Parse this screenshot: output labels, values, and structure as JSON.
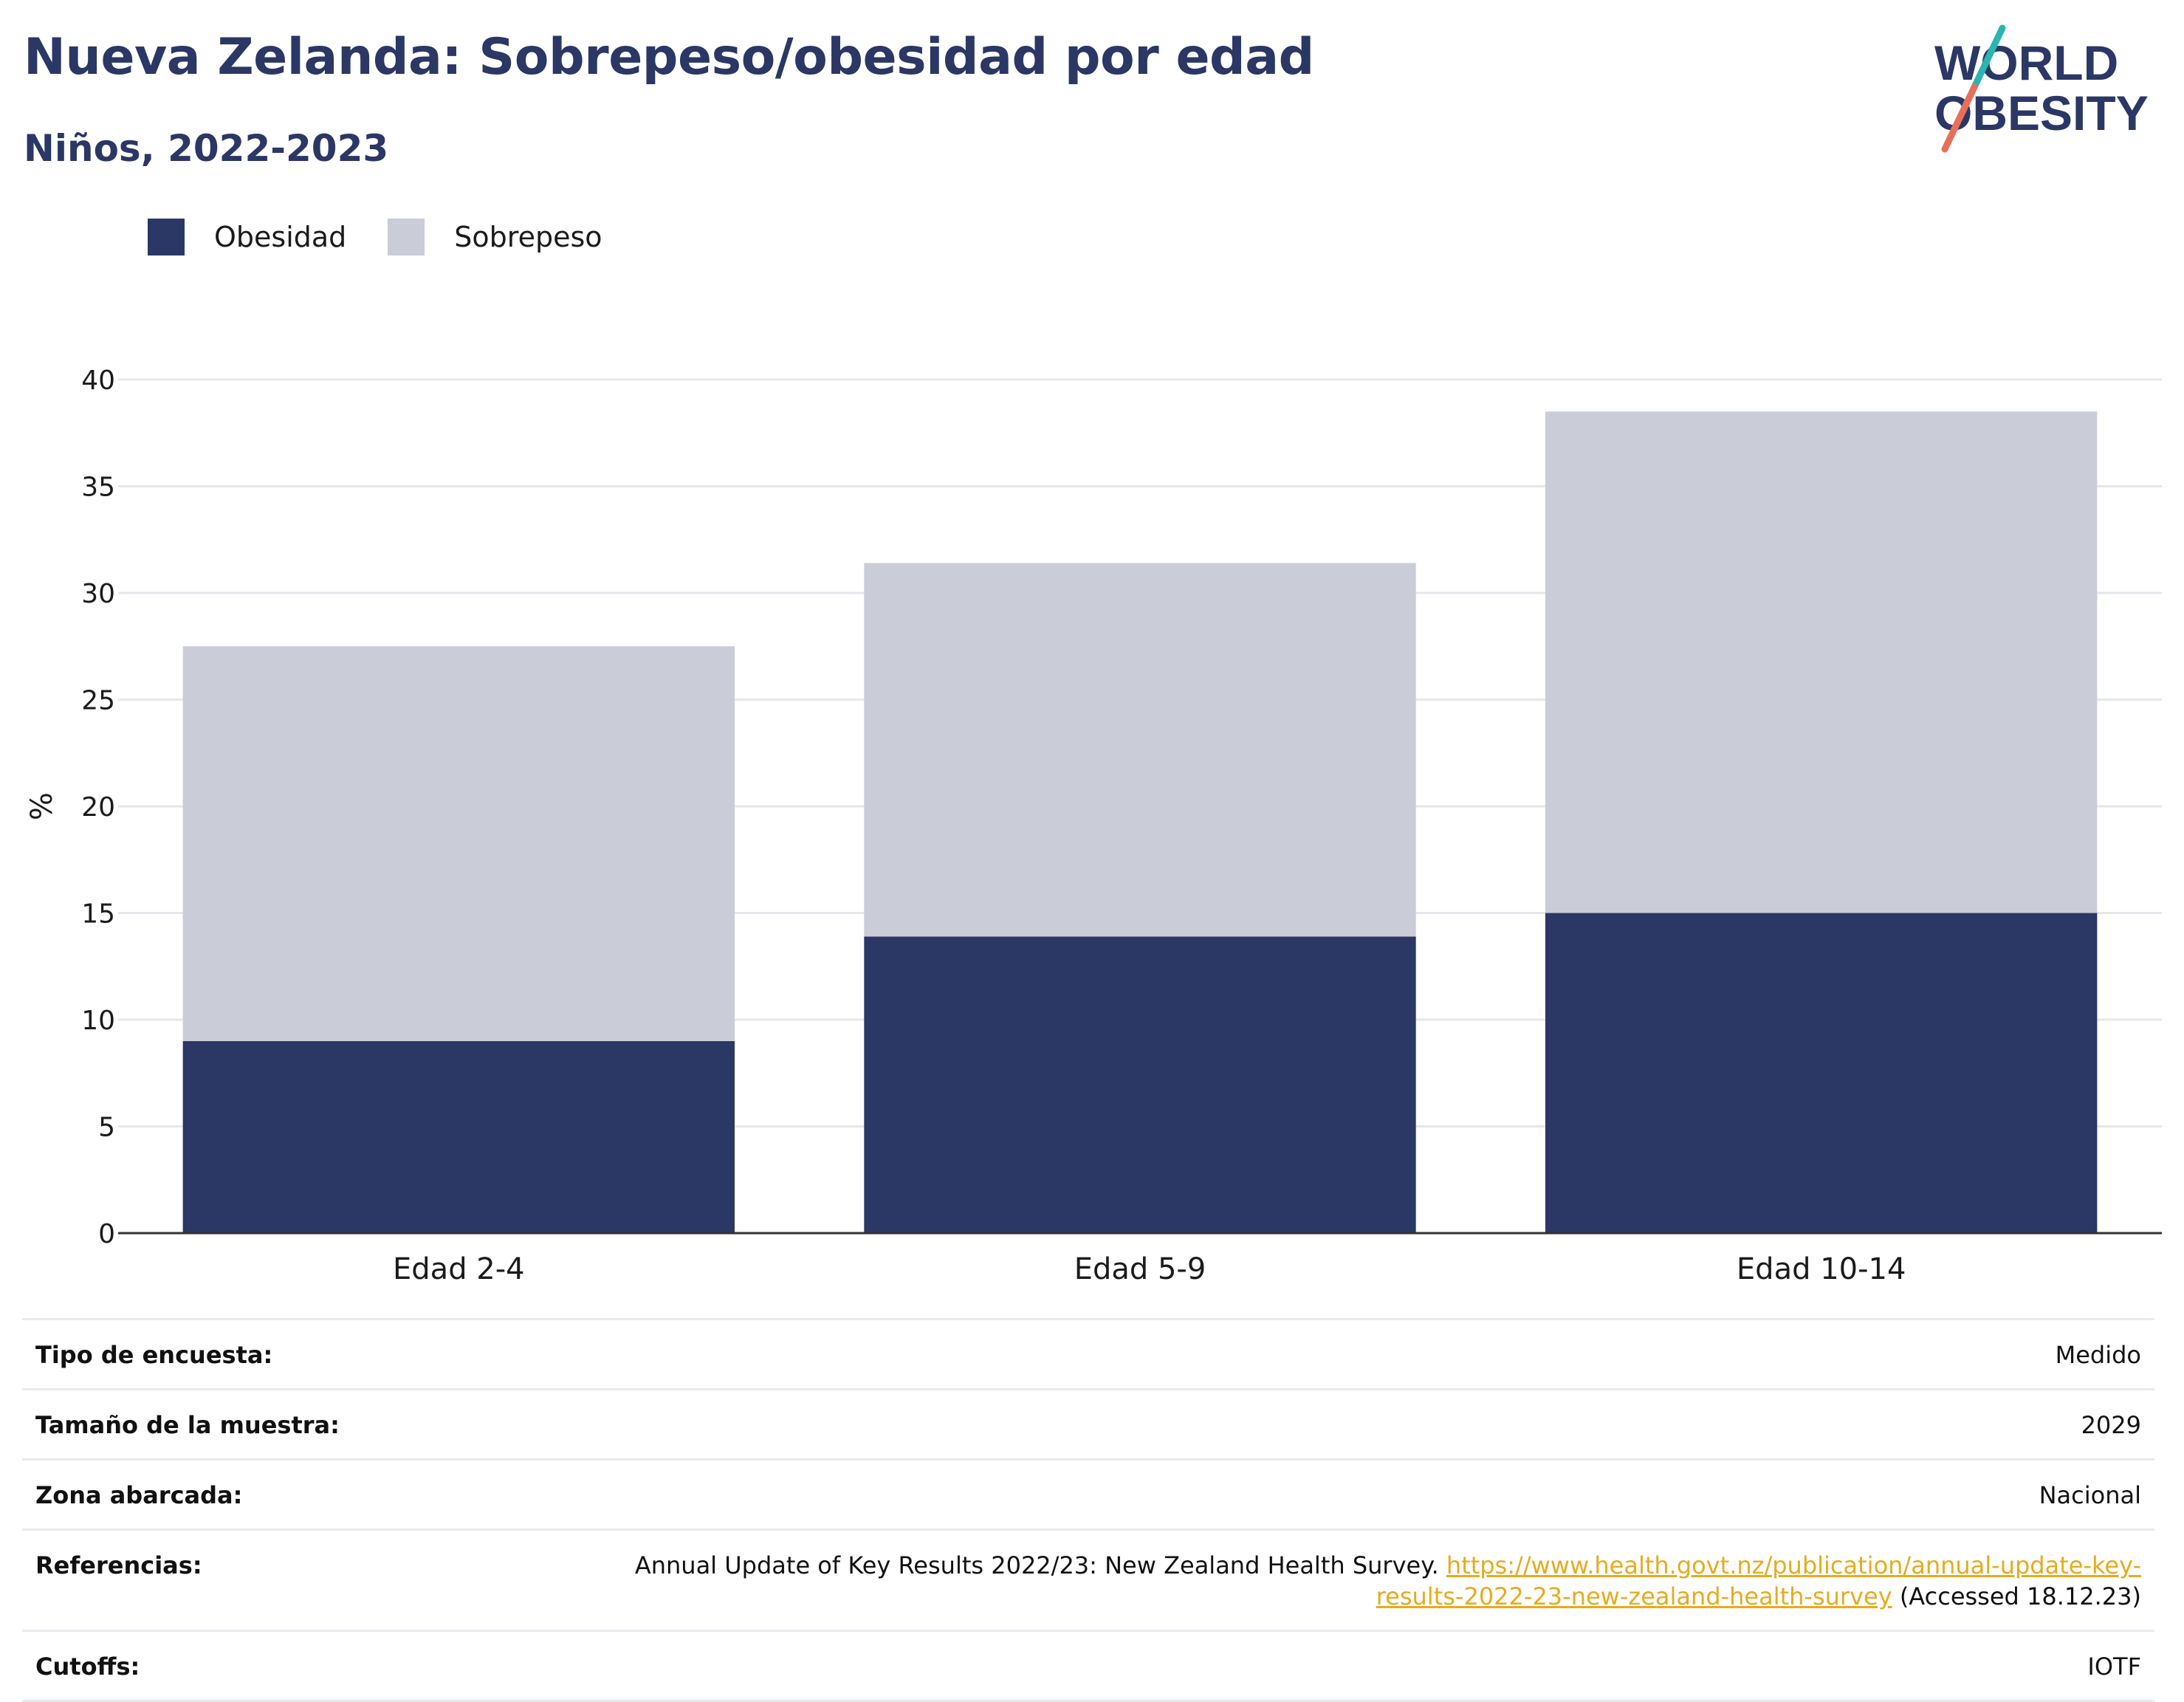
{
  "header": {
    "title": "Nueva Zelanda: Sobrepeso/obesidad por edad",
    "subtitle": "Niños, 2022-2023"
  },
  "logo": {
    "line1": "WORLD",
    "line2": "OBESITY",
    "accent1": "#2bb5b0",
    "accent2": "#e8705a",
    "text_color": "#2b3765"
  },
  "chart_data": {
    "type": "bar",
    "stacked": true,
    "categories": [
      "Edad 2-4",
      "Edad 5-9",
      "Edad 10-14"
    ],
    "series": [
      {
        "name": "Obesidad",
        "values": [
          9.0,
          13.9,
          15.0
        ],
        "color": "#2b3765"
      },
      {
        "name": "Sobrepeso",
        "values": [
          18.5,
          17.5,
          23.5
        ],
        "color": "#caccd8"
      }
    ],
    "ylabel": "%",
    "ylim": [
      0,
      40
    ],
    "yticks": [
      0,
      5,
      10,
      15,
      20,
      25,
      30,
      35,
      40
    ],
    "grid": true,
    "legend": "top-left"
  },
  "meta": {
    "rows": [
      {
        "key": "Tipo de encuesta:",
        "value": "Medido"
      },
      {
        "key": "Tamaño de la muestra:",
        "value": "2029"
      },
      {
        "key": "Zona abarcada:",
        "value": "Nacional"
      },
      {
        "key": "Cutoffs:",
        "value": "IOTF"
      }
    ],
    "references": {
      "key": "Referencias:",
      "text": "Annual Update of Key Results 2022/23: New Zealand Health Survey. ",
      "link": "https://www.health.govt.nz/publication/annual-update-key-results-2022-23-new-zealand-health-survey",
      "suffix": " (Accessed 18.12.23)"
    }
  }
}
